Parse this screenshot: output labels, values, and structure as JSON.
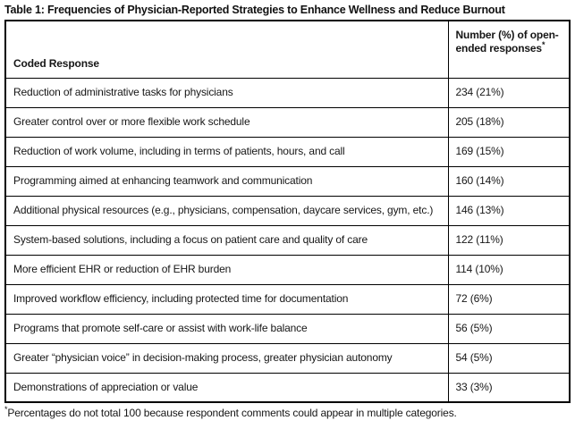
{
  "title": "Table 1: Frequencies of Physician-Reported Strategies to Enhance Wellness and Reduce Burnout",
  "table": {
    "columns": [
      {
        "label": "Coded Response"
      },
      {
        "label": "Number (%) of open-ended responses",
        "footnote_marker": "*"
      }
    ],
    "rows": [
      {
        "response": "Reduction of administrative tasks for physicians",
        "count": "234 (21%)"
      },
      {
        "response": "Greater control over or more flexible work schedule",
        "count": "205 (18%)"
      },
      {
        "response": "Reduction of work volume, including in terms of patients, hours, and call",
        "count": "169 (15%)"
      },
      {
        "response": "Programming aimed at enhancing teamwork and communication",
        "count": "160 (14%)"
      },
      {
        "response": "Additional physical resources (e.g., physicians, compensation, daycare services, gym, etc.)",
        "count": "146 (13%)"
      },
      {
        "response": "System-based solutions, including a focus on patient care and quality of care",
        "count": "122 (11%)"
      },
      {
        "response": "More efficient EHR or reduction of EHR burden",
        "count": "114 (10%)"
      },
      {
        "response": "Improved workflow efficiency, including protected time for documentation",
        "count": "72 (6%)"
      },
      {
        "response": "Programs that promote self-care or assist with work-life balance",
        "count": "56 (5%)"
      },
      {
        "response": "Greater “physician voice” in decision-making process, greater physician autonomy",
        "count": "54 (5%)"
      },
      {
        "response": "Demonstrations of appreciation or value",
        "count": "33 (3%)"
      }
    ]
  },
  "footnote": {
    "marker": "*",
    "text": "Percentages do not total 100 because respondent comments could appear in multiple categories."
  },
  "colors": {
    "background": "#ffffff",
    "border": "#000000",
    "text": "#161616"
  }
}
